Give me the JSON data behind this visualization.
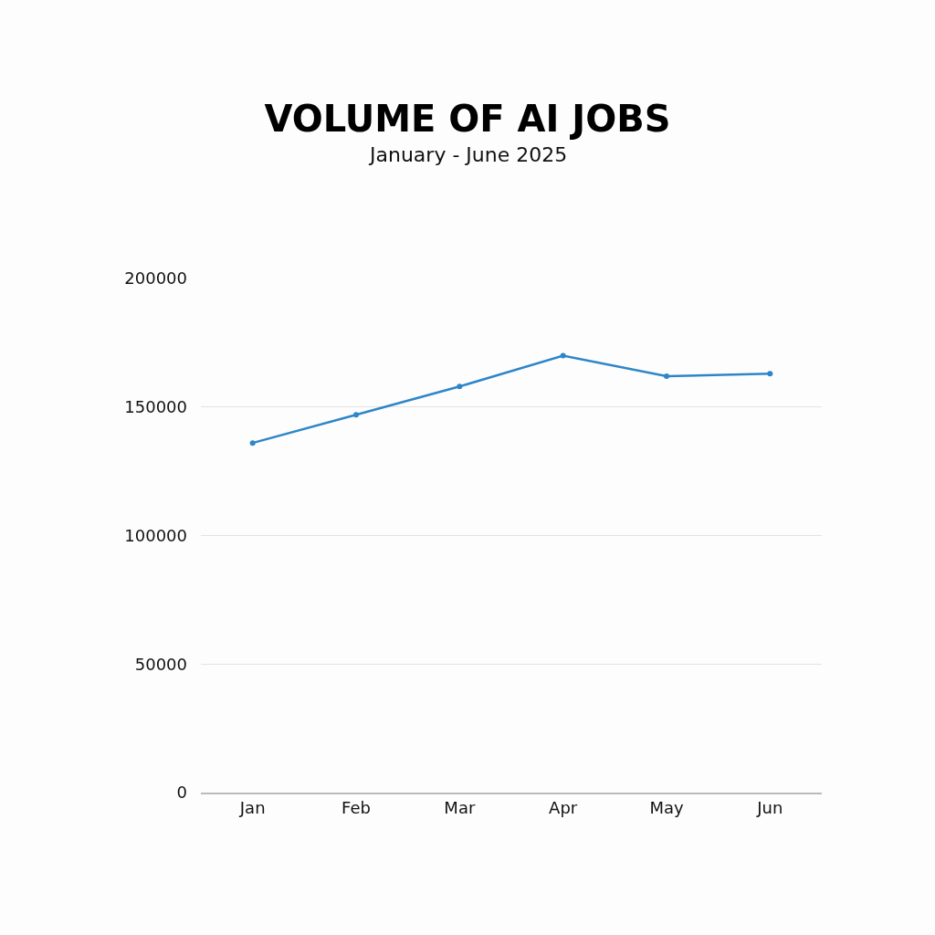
{
  "chart_data": {
    "type": "line",
    "title": "VOLUME OF AI JOBS",
    "subtitle": "January - June 2025",
    "categories": [
      "Jan",
      "Feb",
      "Mar",
      "Apr",
      "May",
      "Jun"
    ],
    "series": [
      {
        "color": "#2e86c8",
        "values": [
          136000,
          147000,
          158000,
          170000,
          162000,
          163000
        ]
      }
    ],
    "ylim": [
      0,
      200000
    ],
    "yticks": [
      0,
      50000,
      100000,
      150000,
      200000
    ],
    "grid": "y",
    "marker": "circle",
    "line_style": "solid"
  }
}
